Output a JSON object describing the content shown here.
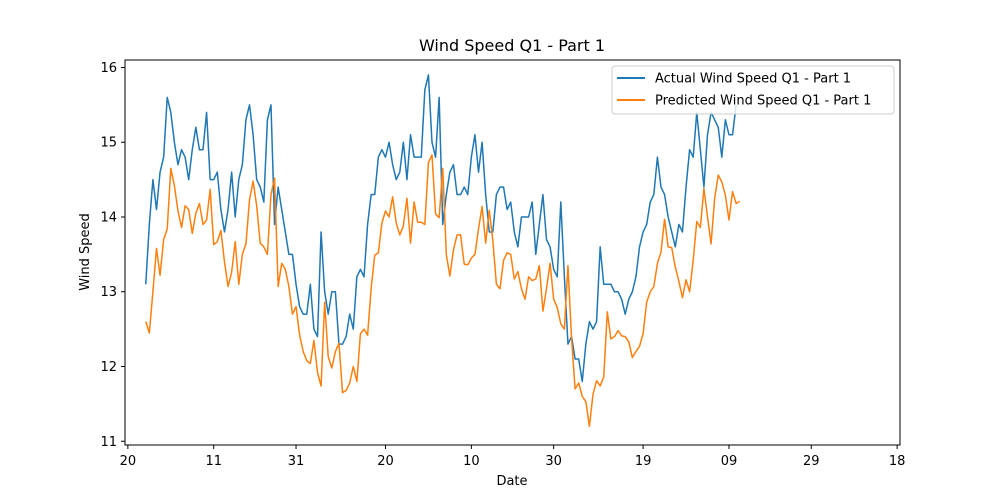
{
  "chart_data": {
    "type": "line",
    "title": "Wind Speed Q1 - Part 1",
    "xlabel": "Date",
    "ylabel": "Wind Speed",
    "ylim": [
      10.95,
      16.1
    ],
    "yticks": [
      11,
      12,
      13,
      14,
      15,
      16
    ],
    "x_range_index": [
      -5.8,
      210.8
    ],
    "xticks": [
      {
        "label": "20",
        "index": -5
      },
      {
        "label": "11",
        "index": 19
      },
      {
        "label": "31",
        "index": 42
      },
      {
        "label": "20",
        "index": 67
      },
      {
        "label": "10",
        "index": 91
      },
      {
        "label": "30",
        "index": 114
      },
      {
        "label": "19",
        "index": 139
      },
      {
        "label": "09",
        "index": 163
      },
      {
        "label": "29",
        "index": 186
      },
      {
        "label": "18",
        "index": 210
      }
    ],
    "grid": false,
    "legend_position": "top-right",
    "series": [
      {
        "name": "Actual Wind Speed Q1 - Part 1",
        "color": "#1f77b4",
        "values": [
          13.1,
          13.9,
          14.5,
          14.1,
          14.6,
          14.8,
          15.6,
          15.4,
          15.0,
          14.7,
          14.9,
          14.8,
          14.5,
          14.9,
          15.2,
          14.9,
          14.9,
          15.4,
          14.5,
          14.5,
          14.6,
          14.1,
          13.8,
          14.1,
          14.6,
          14.0,
          14.5,
          14.7,
          15.3,
          15.5,
          15.1,
          14.5,
          14.4,
          14.2,
          15.3,
          15.5,
          13.9,
          14.4,
          14.1,
          13.8,
          13.5,
          13.5,
          13.1,
          12.8,
          12.7,
          12.7,
          13.1,
          12.5,
          12.4,
          13.8,
          13.0,
          12.7,
          13.0,
          13.0,
          12.3,
          12.3,
          12.4,
          12.7,
          12.5,
          13.2,
          13.3,
          13.2,
          13.9,
          14.3,
          14.3,
          14.8,
          14.9,
          14.8,
          15.0,
          14.7,
          14.5,
          14.6,
          15.0,
          14.5,
          15.1,
          14.8,
          14.8,
          14.8,
          15.7,
          15.9,
          15.0,
          14.8,
          15.6,
          13.9,
          14.3,
          14.6,
          14.7,
          14.3,
          14.3,
          14.4,
          14.3,
          14.8,
          15.1,
          14.6,
          15.0,
          14.3,
          13.8,
          13.8,
          14.3,
          14.4,
          14.4,
          14.1,
          14.2,
          13.8,
          13.6,
          14.0,
          14.0,
          14.0,
          14.2,
          13.5,
          13.9,
          14.3,
          13.7,
          13.6,
          13.3,
          13.2,
          14.2,
          13.2,
          12.3,
          12.4,
          12.1,
          12.1,
          11.8,
          12.3,
          12.6,
          12.5,
          12.6,
          13.6,
          13.1,
          13.1,
          13.1,
          13.0,
          13.0,
          12.9,
          12.7,
          12.9,
          13.0,
          13.2,
          13.6,
          13.8,
          13.9,
          14.2,
          14.3,
          14.8,
          14.4,
          14.3,
          14.0,
          13.8,
          13.6,
          13.9,
          13.8,
          14.4,
          14.9,
          14.8,
          15.4,
          14.9,
          14.4,
          15.1,
          15.4,
          15.3,
          15.2,
          14.8,
          15.3,
          15.1,
          15.1,
          15.5
        ]
      },
      {
        "name": "Predicted Wind Speed Q1 - Part 1",
        "color": "#ff7f0e",
        "values": [
          12.6,
          12.45,
          13.0,
          13.58,
          13.22,
          13.7,
          13.84,
          14.65,
          14.42,
          14.08,
          13.86,
          14.15,
          14.1,
          13.78,
          14.05,
          14.18,
          13.9,
          13.96,
          14.37,
          13.63,
          13.67,
          13.82,
          13.4,
          13.07,
          13.26,
          13.67,
          13.1,
          13.5,
          13.64,
          14.23,
          14.48,
          14.15,
          13.65,
          13.6,
          13.5,
          14.3,
          14.52,
          13.07,
          13.38,
          13.3,
          13.07,
          12.7,
          12.8,
          12.42,
          12.2,
          12.08,
          12.04,
          12.35,
          11.92,
          11.74,
          12.86,
          12.13,
          11.98,
          12.2,
          12.31,
          11.65,
          11.68,
          11.78,
          12.0,
          11.8,
          12.44,
          12.5,
          12.42,
          13.05,
          13.49,
          13.52,
          13.92,
          14.08,
          14.0,
          14.27,
          13.92,
          13.76,
          13.88,
          14.25,
          13.65,
          14.2,
          13.93,
          13.93,
          13.9,
          14.73,
          14.83,
          14.04,
          13.99,
          14.65,
          13.5,
          13.21,
          13.56,
          13.76,
          13.76,
          13.37,
          13.36,
          13.45,
          13.5,
          13.84,
          14.14,
          13.65,
          14.09,
          13.69,
          13.1,
          13.04,
          13.42,
          13.52,
          13.5,
          13.17,
          13.27,
          13.04,
          12.9,
          13.2,
          13.15,
          13.17,
          13.35,
          12.74,
          13.04,
          13.38,
          12.9,
          12.79,
          12.57,
          12.5,
          13.35,
          12.38,
          11.7,
          11.78,
          11.6,
          11.53,
          11.2,
          11.63,
          11.81,
          11.74,
          11.86,
          12.73,
          12.37,
          12.4,
          12.48,
          12.41,
          12.4,
          12.33,
          12.12,
          12.2,
          12.27,
          12.44,
          12.86,
          13.0,
          13.07,
          13.38,
          13.53,
          13.97,
          13.6,
          13.59,
          13.33,
          13.14,
          12.92,
          13.16,
          13.0,
          13.42,
          13.94,
          13.86,
          14.38,
          14.0,
          13.64,
          14.25,
          14.56,
          14.47,
          14.29,
          13.96,
          14.34,
          14.18,
          14.21
        ]
      }
    ]
  }
}
